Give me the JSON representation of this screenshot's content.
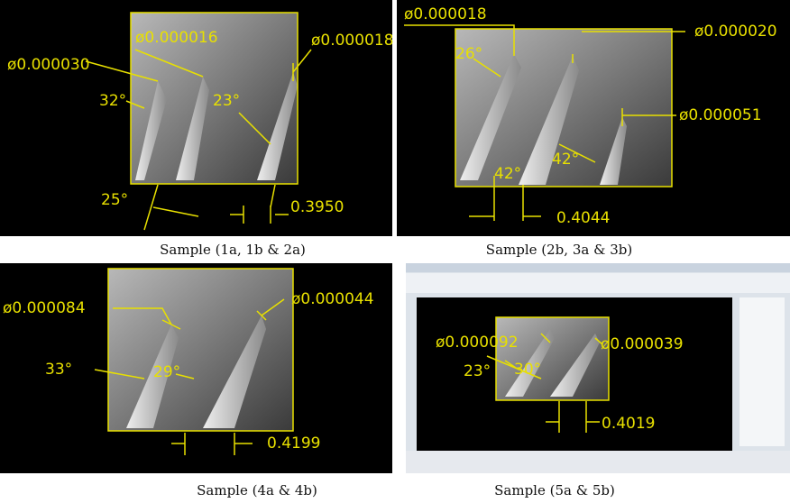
{
  "panels": [
    {
      "annotations": [
        "ø0.000016",
        "ø0.000018",
        "ø0.000030",
        "32°",
        "23°",
        "25°",
        "0.3950"
      ],
      "caption": "Sample (1a, 1b & 2a)"
    },
    {
      "annotations": [
        "ø0.000018",
        "ø0.000020",
        "26°",
        "ø0.000051",
        "42°",
        "42°",
        "0.4044"
      ],
      "caption": "Sample (2b, 3a & 3b)"
    },
    {
      "annotations": [
        "ø0.000084",
        "ø0.000044",
        "33°",
        "29°",
        "0.4199"
      ],
      "caption": "Sample (4a & 4b)"
    },
    {
      "annotations": [
        "ø0.000092",
        "ø0.000039",
        "23°",
        "30°",
        "0.4019"
      ],
      "caption": "Sample (5a & 5b)"
    }
  ]
}
